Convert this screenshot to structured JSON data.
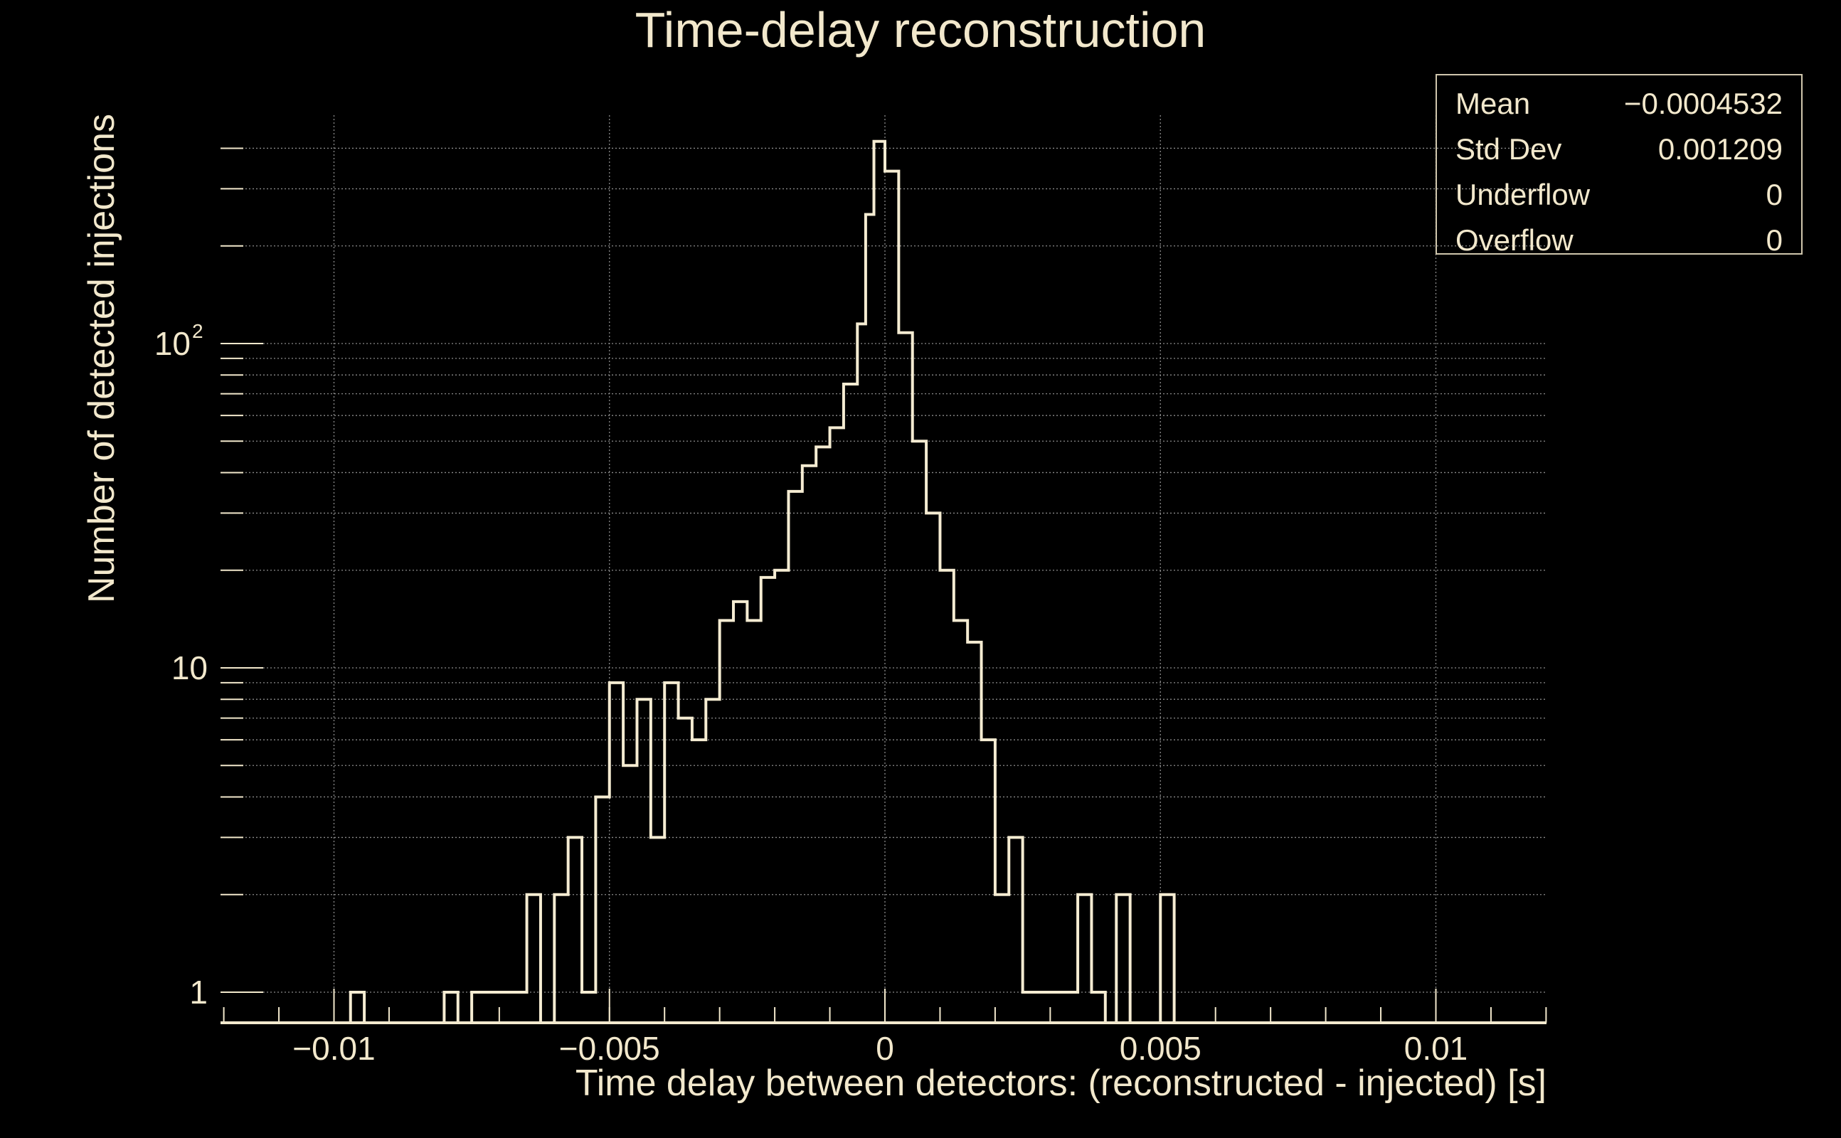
{
  "chart_data": {
    "type": "histogram",
    "title": "Time-delay reconstruction",
    "xlabel": "Time delay between detectors: (reconstructed - injected) [s]",
    "ylabel": "Number of detected injections",
    "xlim": [
      -0.0121,
      0.0121
    ],
    "ylim": [
      0.8,
      480
    ],
    "yscale": "log",
    "grid": true,
    "x_ticks": [
      {
        "value": -0.01,
        "label": "−0.01"
      },
      {
        "value": -0.005,
        "label": "−0.005"
      },
      {
        "value": 0,
        "label": "0"
      },
      {
        "value": 0.005,
        "label": "0.005"
      },
      {
        "value": 0.01,
        "label": "0.01"
      }
    ],
    "y_ticks": [
      {
        "value": 1,
        "label": "1"
      },
      {
        "value": 10,
        "label": "10"
      },
      {
        "value": 100,
        "label": "10",
        "sup": "2"
      }
    ],
    "bin_width": 0.00025,
    "bins": [
      {
        "x0": -0.0097,
        "count": 1
      },
      {
        "x0": -0.008,
        "count": 1
      },
      {
        "x0": -0.0075,
        "count": 1
      },
      {
        "x0": -0.00725,
        "count": 1
      },
      {
        "x0": -0.007,
        "count": 1
      },
      {
        "x0": -0.00675,
        "count": 1
      },
      {
        "x0": -0.0065,
        "count": 2
      },
      {
        "x0": -0.006,
        "count": 2
      },
      {
        "x0": -0.00575,
        "count": 3
      },
      {
        "x0": -0.0055,
        "count": 1
      },
      {
        "x0": -0.00525,
        "count": 4
      },
      {
        "x0": -0.005,
        "count": 9
      },
      {
        "x0": -0.00475,
        "count": 5
      },
      {
        "x0": -0.0045,
        "count": 8
      },
      {
        "x0": -0.00425,
        "count": 3
      },
      {
        "x0": -0.004,
        "count": 9
      },
      {
        "x0": -0.00375,
        "count": 7
      },
      {
        "x0": -0.0035,
        "count": 6
      },
      {
        "x0": -0.00325,
        "count": 8
      },
      {
        "x0": -0.003,
        "count": 14
      },
      {
        "x0": -0.00275,
        "count": 16
      },
      {
        "x0": -0.0025,
        "count": 14
      },
      {
        "x0": -0.00225,
        "count": 19
      },
      {
        "x0": -0.002,
        "count": 20
      },
      {
        "x0": -0.00175,
        "count": 35
      },
      {
        "x0": -0.0015,
        "count": 42
      },
      {
        "x0": -0.00125,
        "count": 48
      },
      {
        "x0": -0.001,
        "count": 55
      },
      {
        "x0": -0.00075,
        "count": 75
      },
      {
        "x0": -0.0005,
        "count": 115
      },
      {
        "x0": -0.00025,
        "count": 250
      },
      {
        "x0": -0.00025,
        "count": 0,
        "skip": true
      },
      {
        "x0": 0.0,
        "count": 340
      },
      {
        "x0": 0.00025,
        "count": 108
      },
      {
        "x0": 0.0005,
        "count": 50
      },
      {
        "x0": 0.00075,
        "count": 30
      },
      {
        "x0": 0.001,
        "count": 20
      },
      {
        "x0": 0.00125,
        "count": 14
      },
      {
        "x0": 0.0015,
        "count": 12
      },
      {
        "x0": 0.00175,
        "count": 6
      },
      {
        "x0": 0.002,
        "count": 2
      },
      {
        "x0": 0.00225,
        "count": 3
      },
      {
        "x0": 0.0025,
        "count": 1
      },
      {
        "x0": 0.00275,
        "count": 1
      },
      {
        "x0": 0.003,
        "count": 1
      },
      {
        "x0": 0.00325,
        "count": 1
      },
      {
        "x0": 0.0035,
        "count": 2
      },
      {
        "x0": 0.00375,
        "count": 1
      },
      {
        "x0": 0.0042,
        "count": 2
      },
      {
        "x0": 0.005,
        "count": 2
      }
    ],
    "peak_bins": [
      {
        "x0": -0.0005,
        "count": 115
      },
      {
        "x0": -0.00035,
        "count": 250
      },
      {
        "x0": -0.0002,
        "count": 420
      },
      {
        "x0": 0.0,
        "count": 340
      }
    ],
    "stats": {
      "rows": [
        {
          "label": "Mean",
          "value": "−0.0004532"
        },
        {
          "label": "Std Dev",
          "value": "0.001209"
        },
        {
          "label": "Underflow",
          "value": "0"
        },
        {
          "label": "Overflow",
          "value": "0"
        }
      ]
    }
  }
}
